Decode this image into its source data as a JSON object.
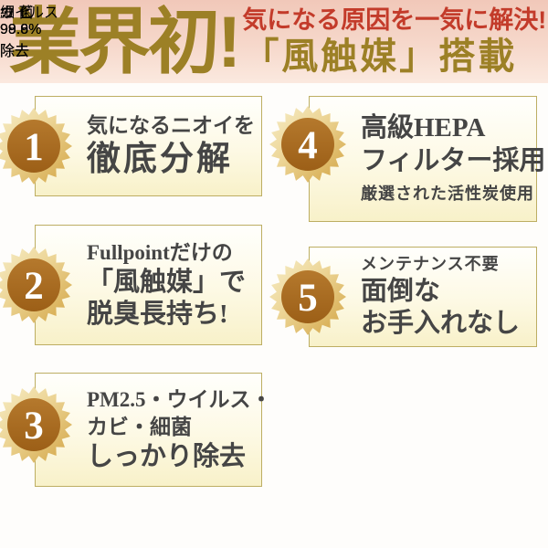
{
  "header": {
    "title": "業界初!",
    "subtitle": "気になる原因を一気に解決!",
    "feature": "「風触媒」搭載"
  },
  "features": [
    {
      "number": "1",
      "lines": [
        {
          "text": "気になるニオイを",
          "style": "md"
        },
        {
          "text": "徹底分解",
          "style": "xl"
        }
      ]
    },
    {
      "number": "2",
      "lines": [
        {
          "text": "Fullpointだけの",
          "style": "md"
        },
        {
          "text": "「風触媒」で",
          "style": "lg"
        },
        {
          "text": "脱臭長持ち!",
          "style": "lg"
        }
      ]
    },
    {
      "number": "3",
      "lines": [
        {
          "text": "PM2.5・ウイルス・",
          "style": "md"
        },
        {
          "text": "カビ・細菌",
          "style": "md"
        },
        {
          "text": "しっかり除去",
          "style": "lg"
        }
      ]
    },
    {
      "number": "4",
      "lines": [
        {
          "text": "高級HEPA",
          "style": "lg"
        },
        {
          "text": "フィルター採用",
          "style": "lg"
        },
        {
          "text": "厳選された活性炭使用",
          "style": "sm"
        }
      ]
    },
    {
      "number": "5",
      "lines": [
        {
          "text": "メンテナンス不要",
          "style": "sm"
        },
        {
          "text": "面倒な",
          "style": "lg"
        },
        {
          "text": "お手入れなし",
          "style": "lg"
        }
      ]
    }
  ],
  "removal_stats": [
    {
      "label": "ウイルス",
      "percent": "99.8",
      "unit": "%",
      "action": "除去"
    },
    {
      "label": "細 菌",
      "percent": "99.9",
      "unit": "%",
      "action": "除去"
    },
    {
      "label": "カ ビ",
      "percent": "98.6",
      "unit": "%",
      "action": "除去"
    }
  ],
  "colors": {
    "headline_gold": "#9c8026",
    "headline_red": "#c33b2a",
    "header_background_pink": "#f1c8b9",
    "card_border_gold": "#bdae63",
    "card_background_cream": "#f8f1c9",
    "card_text_gray": "#454545",
    "badge_star_gold": "#d5a74a",
    "badge_circle_brown": "#a86a1e",
    "bubble_pink": "#f6bab0",
    "bubble_text_rose": "#a14e63"
  }
}
